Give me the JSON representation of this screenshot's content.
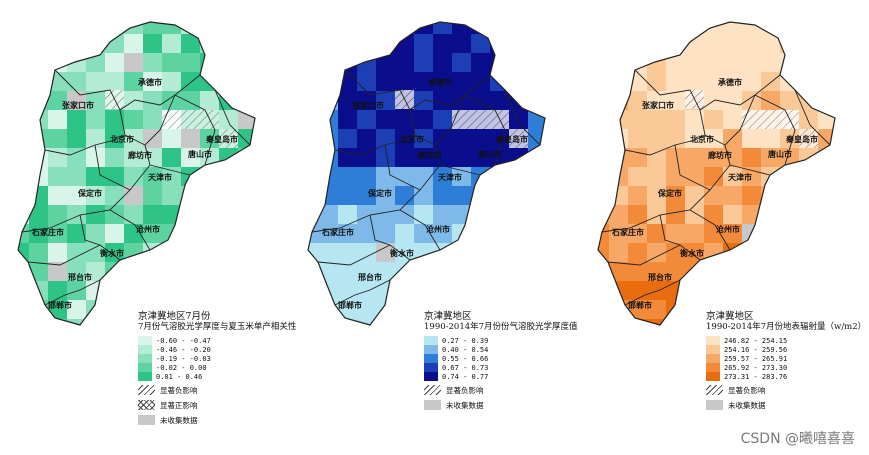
{
  "cities": [
    {
      "name": "张家口市",
      "key": "zjk"
    },
    {
      "name": "承德市",
      "key": "cd"
    },
    {
      "name": "北京市",
      "key": "bj"
    },
    {
      "name": "秦皇岛市",
      "key": "qhd"
    },
    {
      "name": "廊坊市",
      "key": "lf"
    },
    {
      "name": "唐山市",
      "key": "ts"
    },
    {
      "name": "保定市",
      "key": "bd"
    },
    {
      "name": "天津市",
      "key": "tj"
    },
    {
      "name": "石家庄市",
      "key": "sjz"
    },
    {
      "name": "沧州市",
      "key": "cz"
    },
    {
      "name": "衡水市",
      "key": "hs"
    },
    {
      "name": "邢台市",
      "key": "xt"
    },
    {
      "name": "邯郸市",
      "key": "hd"
    }
  ],
  "panels": [
    {
      "legend_title": "京津冀地区7月份",
      "legend_subtitle": "7月份气溶胶光学厚度与夏玉米单产相关性",
      "classes": [
        {
          "label": "-0.60 - -0.47",
          "color": "#d9f5ea"
        },
        {
          "label": "-0.46 - -0.20",
          "color": "#b3ebd4"
        },
        {
          "label": "-0.19 - -0.03",
          "color": "#88dfbc"
        },
        {
          "label": "-0.02 - 0.00",
          "color": "#5ed3a2"
        },
        {
          "label": "0.01 - 0.46",
          "color": "#2fc487"
        }
      ],
      "extras": [
        {
          "label": "显著负影响",
          "pattern": "hatch"
        },
        {
          "label": "显著正影响",
          "pattern": "cross"
        },
        {
          "label": "未收集数据",
          "pattern": "gray"
        }
      ]
    },
    {
      "legend_title": "京津冀地区",
      "legend_subtitle": "1990-2014年7月份份气溶胶光学厚度值",
      "classes": [
        {
          "label": "0.27 - 0.39",
          "color": "#b5e6f2"
        },
        {
          "label": "0.40 - 0.54",
          "color": "#7fb9ea"
        },
        {
          "label": "0.55 - 0.66",
          "color": "#2e7ed8"
        },
        {
          "label": "0.67 - 0.73",
          "color": "#1c3fb5"
        },
        {
          "label": "0.74 - 0.77",
          "color": "#0a0d8c"
        }
      ],
      "extras": [
        {
          "label": "显著负影响",
          "pattern": "hatch"
        },
        {
          "label": "未收集数据",
          "pattern": "gray"
        }
      ]
    },
    {
      "legend_title": "京津冀地区",
      "legend_subtitle": "1990-2014年7月份地表辐射量（w/m2）",
      "classes": [
        {
          "label": "246.82 - 254.15",
          "color": "#fde3c3"
        },
        {
          "label": "254.16 - 259.56",
          "color": "#fbc897"
        },
        {
          "label": "259.57 - 265.91",
          "color": "#f7a866"
        },
        {
          "label": "265.92 - 273.30",
          "color": "#f28a3a"
        },
        {
          "label": "273.31 - 283.76",
          "color": "#e96d0f"
        }
      ],
      "extras": [
        {
          "label": "显著负影响",
          "pattern": "hatch"
        },
        {
          "label": "未收集数据",
          "pattern": "gray"
        }
      ]
    }
  ],
  "watermark": "CSDN @曦嘻喜喜"
}
